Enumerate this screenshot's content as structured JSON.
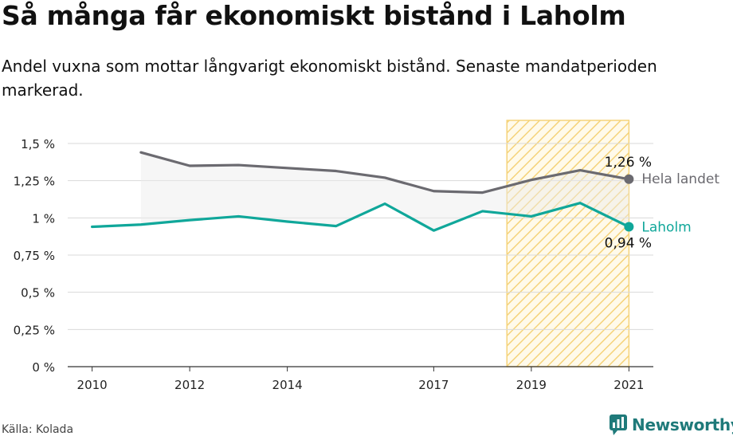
{
  "title": "Så många får ekonomiskt bistånd i Laholm",
  "subtitle": "Andel vuxna som mottar långvarigt ekonomiskt bistånd. Senaste mandatperioden markerad.",
  "source": "Källa: Kolada",
  "brand": "Newsworthy",
  "colors": {
    "national": "#6b6a70",
    "local": "#10a79a",
    "highlight": "#f5d37a",
    "brand": "#1f7a7a"
  },
  "chart_data": {
    "type": "line",
    "ylim": [
      0,
      1.5
    ],
    "yticks": [
      0,
      0.25,
      0.5,
      0.75,
      1,
      1.25,
      1.5
    ],
    "ytick_labels": [
      "0 %",
      "0,25 %",
      "0,5 %",
      "0,75 %",
      "1 %",
      "1,25 %",
      "1,5 %"
    ],
    "xlim": [
      2009.5,
      2021.5
    ],
    "xticks": [
      2010,
      2012,
      2014,
      2017,
      2019,
      2021
    ],
    "xtick_labels": [
      "2010",
      "2012",
      "2014",
      "2017",
      "2019",
      "2021"
    ],
    "highlight_period": [
      2018.5,
      2021
    ],
    "grid": true,
    "series": [
      {
        "name": "Hela landet",
        "end_label": "1,26 %",
        "x": [
          2011,
          2012,
          2013,
          2014,
          2015,
          2016,
          2017,
          2018,
          2019,
          2020,
          2021
        ],
        "values": [
          1.44,
          1.35,
          1.355,
          1.335,
          1.315,
          1.27,
          1.18,
          1.17,
          1.255,
          1.32,
          1.26
        ]
      },
      {
        "name": "Laholm",
        "end_label": "0,94 %",
        "x": [
          2010,
          2011,
          2012,
          2013,
          2014,
          2015,
          2016,
          2017,
          2018,
          2019,
          2020,
          2021
        ],
        "values": [
          0.94,
          0.955,
          0.985,
          1.01,
          0.975,
          0.945,
          1.095,
          0.915,
          1.045,
          1.01,
          1.1,
          0.94
        ]
      }
    ]
  }
}
